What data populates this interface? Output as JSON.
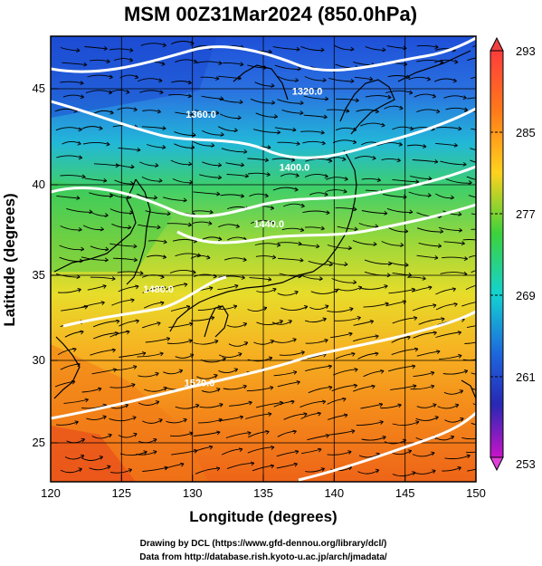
{
  "title": "MSM 00Z31Mar2024 (850.0hPa)",
  "x_axis": {
    "label": "Longitude (degrees)",
    "range": [
      120,
      150
    ],
    "ticks": [
      "120",
      "125",
      "130",
      "135",
      "140",
      "145",
      "150"
    ]
  },
  "y_axis": {
    "label": "Latitude  (degrees)",
    "range": [
      22.4,
      47.6
    ],
    "ticks": [
      "25",
      "30",
      "35",
      "40",
      "45"
    ]
  },
  "colorbar": {
    "ticks": [
      "293",
      "285",
      "277",
      "269",
      "261",
      "253"
    ],
    "range": [
      253,
      293
    ],
    "colors": [
      "#ff3c3c",
      "#ff8c14",
      "#ffd21e",
      "#3cd23c",
      "#14d2d2",
      "#1e64dc",
      "#2828b4",
      "#c814c8"
    ]
  },
  "contours": [
    {
      "label": "1320.0",
      "lon": 138.1,
      "lat": 44.3
    },
    {
      "label": "1360.0",
      "lon": 130.6,
      "lat": 43.0
    },
    {
      "label": "1400.0",
      "lon": 137.2,
      "lat": 40.0
    },
    {
      "label": "1440.0",
      "lon": 135.4,
      "lat": 36.8
    },
    {
      "label": "1480.0",
      "lon": 127.6,
      "lat": 33.1
    },
    {
      "label": "1520.0",
      "lon": 130.5,
      "lat": 27.8
    }
  ],
  "credits": {
    "line1": "Drawing by DCL (https://www.gfd-dennou.org/library/dcl/)",
    "line2": "Data from http://database.rish.kyoto-u.ac.jp/arch/jmadata/"
  }
}
